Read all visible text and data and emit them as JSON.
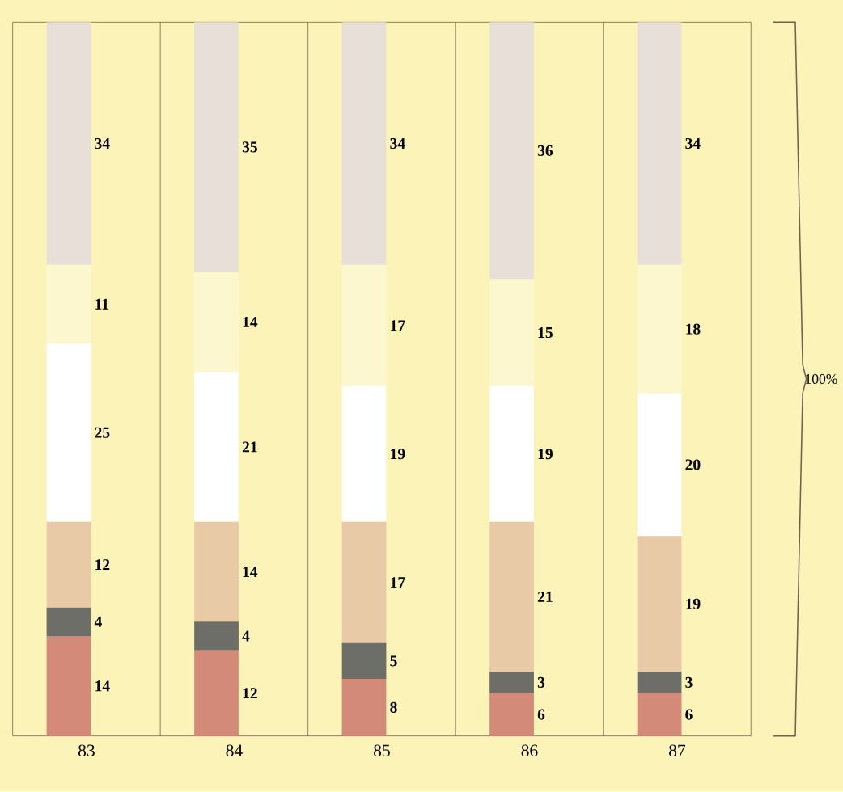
{
  "chart_data": {
    "type": "bar",
    "stacked": true,
    "data_labels": true,
    "categories": [
      "83",
      "84",
      "85",
      "86",
      "87"
    ],
    "series": [
      {
        "color": "#d48a78",
        "values": [
          14,
          12,
          8,
          6,
          6
        ]
      },
      {
        "color": "#6e6e68",
        "values": [
          4,
          4,
          5,
          3,
          3
        ]
      },
      {
        "color": "#e9caa6",
        "values": [
          12,
          14,
          17,
          21,
          19
        ]
      },
      {
        "color": "#ffffff",
        "values": [
          25,
          21,
          19,
          19,
          20
        ]
      },
      {
        "color": "#fdf7cf",
        "values": [
          11,
          14,
          17,
          15,
          18
        ]
      },
      {
        "color": "#e8dfd9",
        "values": [
          34,
          35,
          34,
          36,
          34
        ]
      }
    ],
    "annotations": [
      "100%"
    ]
  }
}
